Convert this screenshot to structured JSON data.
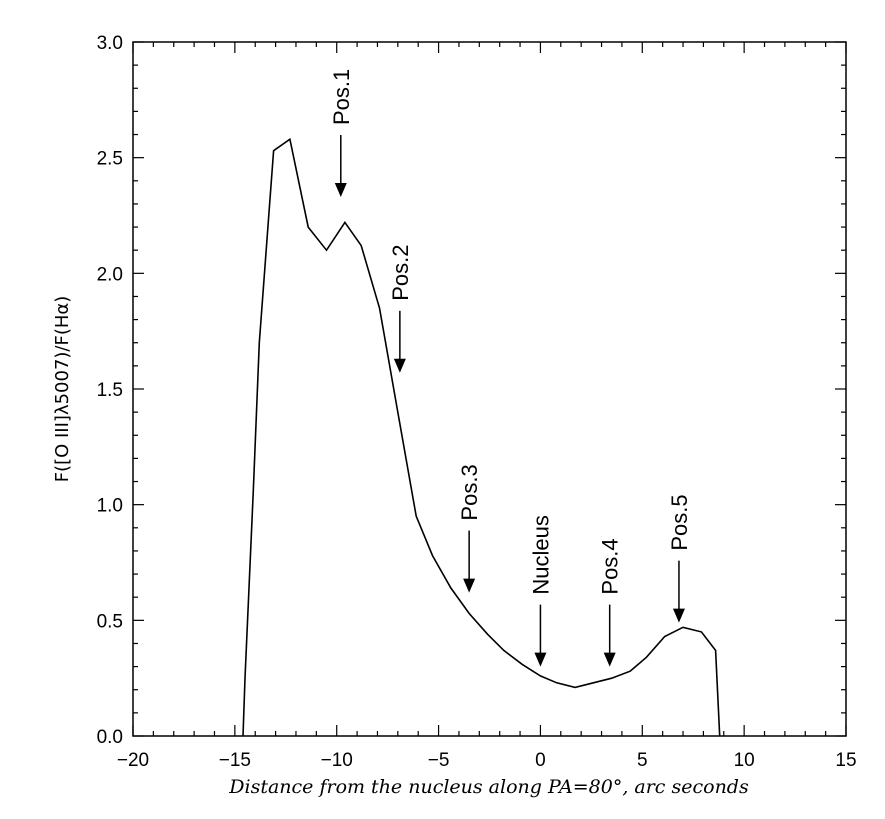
{
  "chart_data": {
    "type": "line",
    "title": "",
    "xlabel": "Distance from the nucleus along PA=80°, arc seconds",
    "ylabel": "F([O III]λ5007)/F(Hα)",
    "xlim": [
      -20,
      15
    ],
    "ylim": [
      0.0,
      3.0
    ],
    "x_ticks": [
      "−20",
      "−15",
      "−10",
      "−5",
      "0",
      "5",
      "10",
      "15"
    ],
    "y_ticks": [
      "0.0",
      "0.5",
      "1.0",
      "1.5",
      "2.0",
      "2.5",
      "3.0"
    ],
    "grid": false,
    "series": [
      {
        "x": [
          -14.6,
          -14.5,
          -14.1,
          -13.8,
          -13.1,
          -12.3,
          -11.4,
          -10.5,
          -9.6,
          -8.8,
          -7.9,
          -7.0,
          -6.1,
          -5.3,
          -4.4,
          -3.5,
          -2.6,
          -1.8,
          -0.9,
          0.0,
          0.8,
          1.7,
          2.6,
          3.5,
          4.4,
          5.2,
          6.1,
          7.0,
          7.9,
          8.6,
          8.8
        ],
        "y": [
          0.0,
          0.25,
          1.05,
          1.7,
          2.53,
          2.58,
          2.2,
          2.1,
          2.22,
          2.12,
          1.85,
          1.4,
          0.95,
          0.78,
          0.64,
          0.53,
          0.44,
          0.37,
          0.31,
          0.26,
          0.23,
          0.21,
          0.23,
          0.25,
          0.28,
          0.34,
          0.43,
          0.47,
          0.45,
          0.37,
          0.0
        ]
      }
    ],
    "annotations": [
      {
        "label": "Pos.1",
        "x": -9.8,
        "y": 2.33
      },
      {
        "label": "Pos.2",
        "x": -6.9,
        "y": 1.57
      },
      {
        "label": "Pos.3",
        "x": -3.5,
        "y": 0.62
      },
      {
        "label": "Nucleus",
        "x": 0.0,
        "y": 0.3
      },
      {
        "label": "Pos.4",
        "x": 3.4,
        "y": 0.3
      },
      {
        "label": "Pos.5",
        "x": 6.8,
        "y": 0.49
      }
    ]
  }
}
